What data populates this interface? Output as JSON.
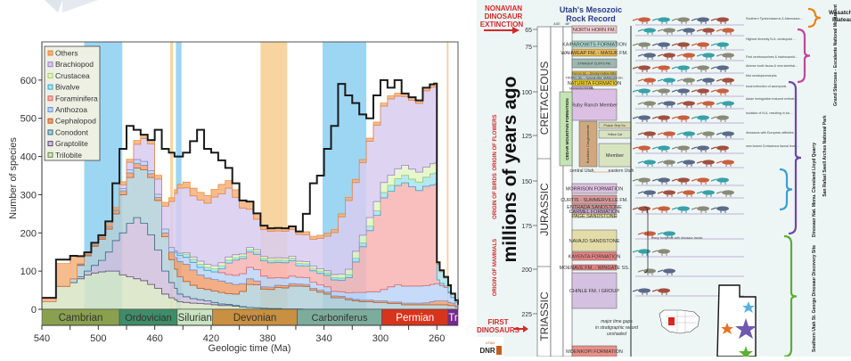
{
  "chart_data": {
    "type": "area",
    "title": "",
    "xlabel": "Geologic time (Ma)",
    "ylabel": "Number of species",
    "xlim": [
      540,
      245
    ],
    "ylim": [
      0,
      700
    ],
    "xticks": [
      540,
      500,
      460,
      420,
      380,
      340,
      300,
      260
    ],
    "yticks": [
      0,
      100,
      200,
      300,
      400,
      500,
      600
    ],
    "legend_position": "top-left",
    "legend": [
      "Others",
      "Brachiopod",
      "Crustacea",
      "Bivalve",
      "Foraminifera",
      "Anthozoa",
      "Cephalopod",
      "Conodont",
      "Graptolite",
      "Trilobite"
    ],
    "colors": {
      "Others": "#f5b07a",
      "Brachiopod": "#d8ccf0",
      "Crustacea": "#e4f4c4",
      "Bivalve": "#a8e4f0",
      "Foraminifera": "#f8b4b4",
      "Anthozoa": "#bcd4f8",
      "Cephalopod": "#f0a070",
      "Conodont": "#b4d0d8",
      "Graptolite": "#cfc0dc",
      "Trilobite": "#d8e4c4"
    },
    "legend_edge_colors": {
      "Others": "#e8853a",
      "Brachiopod": "#9a7cc8",
      "Crustacea": "#a8d060",
      "Bivalve": "#30a8d0",
      "Foraminifera": "#e06060",
      "Anthozoa": "#6894d8",
      "Cephalopod": "#c85a20",
      "Conodont": "#2a6c88",
      "Graptolite": "#5a4870",
      "Trilobite": "#5a8a3a"
    },
    "x": [
      540,
      530,
      520,
      515,
      510,
      505,
      500,
      495,
      490,
      485,
      480,
      475,
      470,
      465,
      460,
      455,
      450,
      446,
      444,
      440,
      435,
      430,
      425,
      420,
      415,
      410,
      405,
      400,
      395,
      390,
      385,
      380,
      375,
      370,
      365,
      360,
      355,
      350,
      345,
      340,
      335,
      330,
      325,
      320,
      315,
      310,
      305,
      300,
      295,
      290,
      285,
      280,
      275,
      270,
      265,
      262,
      260,
      258,
      255,
      252,
      250,
      247,
      245
    ],
    "series": [
      {
        "name": "Trilobite",
        "values": [
          20,
          60,
          70,
          80,
          90,
          95,
          98,
          100,
          100,
          90,
          85,
          80,
          75,
          65,
          55,
          40,
          30,
          25,
          20,
          18,
          16,
          15,
          14,
          12,
          10,
          10,
          8,
          6,
          5,
          4,
          3,
          2,
          2,
          1,
          1,
          1,
          0,
          0,
          0,
          0,
          0,
          0,
          0,
          0,
          0,
          0,
          0,
          0,
          0,
          0,
          0,
          0,
          0,
          0,
          0,
          0,
          0,
          0,
          0,
          0,
          0,
          0,
          0
        ]
      },
      {
        "name": "Graptolite",
        "values": [
          0,
          0,
          0,
          5,
          10,
          20,
          30,
          50,
          80,
          110,
          140,
          160,
          150,
          130,
          100,
          60,
          40,
          30,
          20,
          15,
          12,
          10,
          8,
          6,
          4,
          3,
          2,
          1,
          0,
          0,
          0,
          0,
          0,
          0,
          0,
          0,
          0,
          0,
          0,
          0,
          0,
          0,
          0,
          0,
          0,
          0,
          0,
          0,
          0,
          0,
          0,
          0,
          0,
          0,
          0,
          0,
          0,
          0,
          0,
          0,
          0,
          0,
          0
        ]
      },
      {
        "name": "Conodont",
        "values": [
          0,
          0,
          10,
          30,
          40,
          50,
          55,
          60,
          70,
          100,
          120,
          130,
          140,
          150,
          130,
          90,
          60,
          50,
          45,
          40,
          35,
          30,
          30,
          30,
          30,
          28,
          30,
          40,
          60,
          60,
          50,
          50,
          55,
          55,
          60,
          60,
          60,
          50,
          45,
          40,
          30,
          30,
          25,
          22,
          20,
          20,
          18,
          18,
          15,
          15,
          12,
          12,
          12,
          12,
          12,
          12,
          12,
          12,
          12,
          10,
          10,
          6,
          2
        ]
      },
      {
        "name": "Cephalopod",
        "values": [
          0,
          0,
          0,
          2,
          2,
          2,
          4,
          6,
          8,
          10,
          12,
          12,
          12,
          10,
          8,
          10,
          20,
          30,
          40,
          45,
          40,
          35,
          30,
          30,
          30,
          28,
          25,
          20,
          15,
          10,
          6,
          6,
          6,
          6,
          6,
          5,
          5,
          5,
          5,
          5,
          5,
          4,
          4,
          4,
          4,
          4,
          4,
          4,
          4,
          4,
          4,
          4,
          4,
          5,
          8,
          10,
          10,
          10,
          10,
          8,
          6,
          4,
          2
        ]
      },
      {
        "name": "Anthozoa",
        "values": [
          0,
          0,
          0,
          2,
          2,
          2,
          2,
          3,
          4,
          6,
          8,
          10,
          10,
          8,
          8,
          10,
          12,
          14,
          16,
          18,
          20,
          20,
          20,
          20,
          22,
          22,
          24,
          26,
          30,
          30,
          28,
          24,
          20,
          20,
          20,
          18,
          18,
          16,
          14,
          14,
          12,
          12,
          14,
          18,
          20,
          22,
          24,
          30,
          40,
          45,
          45,
          45,
          45,
          45,
          45,
          45,
          45,
          40,
          35,
          25,
          15,
          8,
          4
        ]
      },
      {
        "name": "Foraminifera",
        "values": [
          0,
          0,
          0,
          0,
          0,
          0,
          0,
          0,
          0,
          0,
          0,
          0,
          0,
          0,
          0,
          0,
          0,
          0,
          0,
          0,
          0,
          0,
          0,
          0,
          10,
          30,
          40,
          40,
          40,
          40,
          40,
          40,
          40,
          40,
          40,
          30,
          30,
          30,
          30,
          30,
          30,
          30,
          40,
          80,
          120,
          160,
          200,
          240,
          250,
          260,
          270,
          260,
          250,
          260,
          260,
          260,
          10,
          6,
          4,
          2,
          0,
          0,
          0
        ]
      },
      {
        "name": "Bivalve",
        "values": [
          0,
          0,
          0,
          0,
          0,
          0,
          0,
          0,
          0,
          0,
          0,
          0,
          0,
          0,
          0,
          0,
          0,
          4,
          6,
          8,
          8,
          8,
          8,
          8,
          8,
          8,
          6,
          6,
          6,
          6,
          6,
          6,
          6,
          6,
          6,
          6,
          6,
          6,
          6,
          6,
          6,
          6,
          8,
          10,
          10,
          12,
          12,
          14,
          16,
          18,
          20,
          20,
          22,
          24,
          30,
          30,
          40,
          30,
          20,
          14,
          8,
          4,
          2
        ]
      },
      {
        "name": "Crustacea",
        "values": [
          0,
          0,
          0,
          0,
          0,
          0,
          0,
          0,
          0,
          0,
          0,
          0,
          0,
          0,
          0,
          0,
          0,
          0,
          0,
          4,
          6,
          8,
          8,
          8,
          8,
          8,
          8,
          6,
          6,
          6,
          6,
          6,
          6,
          6,
          6,
          6,
          6,
          6,
          6,
          6,
          8,
          10,
          14,
          18,
          20,
          22,
          24,
          26,
          26,
          26,
          26,
          26,
          26,
          26,
          26,
          26,
          2,
          2,
          2,
          2,
          0,
          0,
          0
        ]
      },
      {
        "name": "Brachiopod",
        "values": [
          0,
          0,
          0,
          0,
          0,
          0,
          0,
          0,
          0,
          10,
          20,
          40,
          60,
          70,
          40,
          60,
          120,
          150,
          170,
          170,
          160,
          160,
          160,
          180,
          180,
          180,
          150,
          120,
          100,
          80,
          70,
          70,
          70,
          70,
          70,
          70,
          70,
          70,
          80,
          90,
          110,
          150,
          180,
          180,
          190,
          200,
          200,
          200,
          200,
          190,
          180,
          180,
          180,
          200,
          200,
          200,
          0,
          0,
          0,
          0,
          0,
          0,
          0
        ]
      },
      {
        "name": "Others",
        "values": [
          10,
          60,
          60,
          20,
          5,
          5,
          5,
          5,
          5,
          8,
          8,
          10,
          10,
          10,
          10,
          10,
          10,
          10,
          10,
          15,
          20,
          20,
          20,
          20,
          25,
          20,
          20,
          20,
          20,
          15,
          10,
          8,
          8,
          8,
          8,
          8,
          8,
          8,
          8,
          8,
          8,
          8,
          8,
          8,
          8,
          8,
          8,
          8,
          8,
          8,
          8,
          8,
          8,
          8,
          8,
          8,
          4,
          2,
          2,
          2,
          2,
          2,
          2
        ]
      }
    ],
    "total_outline": [
      30,
      130,
      140,
      130,
      110,
      110,
      120,
      230,
      330,
      420,
      480,
      470,
      320,
      90,
      470,
      420,
      410,
      400,
      400,
      410,
      440,
      470,
      420,
      410,
      390,
      370,
      330,
      140,
      130,
      130,
      120,
      120,
      120,
      100,
      140,
      200,
      250,
      330,
      350,
      420,
      480,
      590,
      560,
      540,
      510,
      500,
      560,
      600,
      580,
      600,
      100,
      60,
      40,
      20,
      10,
      5,
      3,
      2,
      2,
      1,
      1,
      1,
      1
    ],
    "shaded_intervals": [
      {
        "from": 510,
        "to": 483,
        "color": "#9dd6f2",
        "label": "cold"
      },
      {
        "from": 449,
        "to": 447,
        "color": "#f8d4a0",
        "label": "warm"
      },
      {
        "from": 445,
        "to": 441,
        "color": "#9dd6f2",
        "label": "cold"
      },
      {
        "from": 385,
        "to": 366,
        "color": "#f8d4a0",
        "label": "warm"
      },
      {
        "from": 341,
        "to": 310,
        "color": "#9dd6f2",
        "label": "cold"
      },
      {
        "from": 253,
        "to": 252,
        "color": "#f8d4a0",
        "label": "warm"
      }
    ],
    "periods": [
      {
        "name": "Cambrian",
        "from": 541,
        "to": 485,
        "color": "#8aa04e",
        "text": "#333"
      },
      {
        "name": "Ordovician",
        "from": 485,
        "to": 444,
        "color": "#3e8c68",
        "text": "#333"
      },
      {
        "name": "Silurian",
        "from": 444,
        "to": 419,
        "color": "#c8e4c0",
        "text": "#333"
      },
      {
        "name": "Devonian",
        "from": 419,
        "to": 359,
        "color": "#c89040",
        "text": "#333"
      },
      {
        "name": "Carboniferus",
        "from": 359,
        "to": 299,
        "color": "#7cac9c",
        "text": "#333"
      },
      {
        "name": "Permian",
        "from": 299,
        "to": 252,
        "color": "#d8341c",
        "text": "#fff"
      },
      {
        "name": "Tr",
        "from": 252,
        "to": 245,
        "color": "#7a2890",
        "text": "#fff"
      }
    ]
  },
  "utah_chart": {
    "title_line1": "Utah's Mesozoic",
    "title_line2": "Rock Record",
    "y_axis_label": "millions of years ago",
    "col_age": "AGE",
    "col_mf": "MF",
    "ticks": [
      "65",
      "75",
      "100",
      "125",
      "150",
      "175",
      "200",
      "225"
    ],
    "periods": [
      "CRETACEOUS",
      "JURASSIC",
      "TRIASSIC"
    ],
    "events": [
      {
        "text": "NONAVIAN DINOSAUR EXTINCTION"
      },
      {
        "text": "ORIGIN OF FLOWERS"
      },
      {
        "text": "ORIGIN OF BIRDS"
      },
      {
        "text": "ORIGIN OF MAMMALS"
      },
      {
        "text": "FIRST DINOSAURS"
      }
    ],
    "formations": [
      {
        "name": "NORTH HORN FM.",
        "color": "#f4c8cc"
      },
      {
        "name": "KAIPAROWITS FORMATION",
        "color": "#a8d8d0"
      },
      {
        "name": "WAHWEAP FM. - MASUK FM.",
        "color": "#e8b850"
      },
      {
        "name": "STRAIGHT CLIFFS FM.",
        "color": "#9cb8b0"
      },
      {
        "name": "Ferron Ss. - Smoky Hollow Mbr.",
        "color": "#e0c040"
      },
      {
        "name": "TROPIC Sh. - Tununk Mbr. MANCOS SH.",
        "color": "#b8c8c0"
      },
      {
        "name": "NATURITA FORMATION",
        "color": "#f4d020"
      },
      {
        "name": "Mussentuchit Mbr.",
        "color": "#d8b8e0"
      },
      {
        "name": "Ruby Ranch Member",
        "color": "#dcc0e4"
      },
      {
        "name": "Poison Strip Ss.",
        "color": "#d8d8b0"
      },
      {
        "name": "Yellow Cat",
        "color": "#d8e4c0"
      },
      {
        "name": "Buckhorn Conglomerate",
        "color": "#d0a880"
      },
      {
        "name": "Member",
        "color": "#d8e4c0"
      },
      {
        "name": "MORRISON FORMATION",
        "color": "#dcc0e0"
      },
      {
        "name": "CURTIS - SUMMERVILLE FM.",
        "color": "#d89898"
      },
      {
        "name": "ENTRADA SANDSTONE",
        "color": "#e89090"
      },
      {
        "name": "CARMEL FORMATION",
        "color": "#dca8d8"
      },
      {
        "name": "PAGE SANDSTONE",
        "color": "#f0e8a0"
      },
      {
        "name": "NAVAJO SANDSTONE",
        "color": "#e4dca8"
      },
      {
        "name": "KAYENTA FORMATION",
        "color": "#e88080"
      },
      {
        "name": "MOENAVE FM. - WINGATE SS.",
        "color": "#e88080"
      },
      {
        "name": "CHINLE FM. / GROUP",
        "color": "#d4c0e0"
      },
      {
        "name": "MOENKOPI FORMATION",
        "color": "#e89088"
      }
    ],
    "cedar_mountain": "CEDAR MOUNTAIN FORMATION",
    "central_label": "central Utah",
    "eastern_label": "eastern Utah",
    "gap_note": "major time gaps in stratigraphic record unshaded",
    "footprints_note": "many footprints with dinosaur tracks",
    "regions": [
      {
        "name": "Wasatch Plateau",
        "color": "#e8861e"
      },
      {
        "name": "Grand Staircase - Escalante National Monument",
        "color": "#c04898"
      },
      {
        "name": "San Rafael Swell Arches National Park",
        "color": "#6a48a8"
      },
      {
        "name": "Dinosaur Nat. Monu. Cleveland Lloyd Quarry",
        "color": "#3aa0d8"
      },
      {
        "name": "Southern Utah St. George Dinosaur Discovery Site",
        "color": "#58b030"
      }
    ],
    "fauna_notes": [
      "Southern Tyrannosaurus & Alamosaurus fauna",
      "Highest diversity N.A. ceratopsid & hadrosaurid fauna",
      "First centrosaurines & hadrosaurids",
      "diverse tooth fauna & new skeletal faunas",
      "first ceratopsomorphs",
      "local extinction of sauropods",
      "Asian immigration induced extinction and origin of N.A. Late Cretaceous dinosaur fauna",
      "Isolation of N.A. resulting in local extinctions and increased endemism",
      "dinosaurs with European affinities",
      "new lowest Cretaceous faunal level(s)"
    ],
    "logo_text": "DNR",
    "logo_subtext": "UTAH"
  }
}
